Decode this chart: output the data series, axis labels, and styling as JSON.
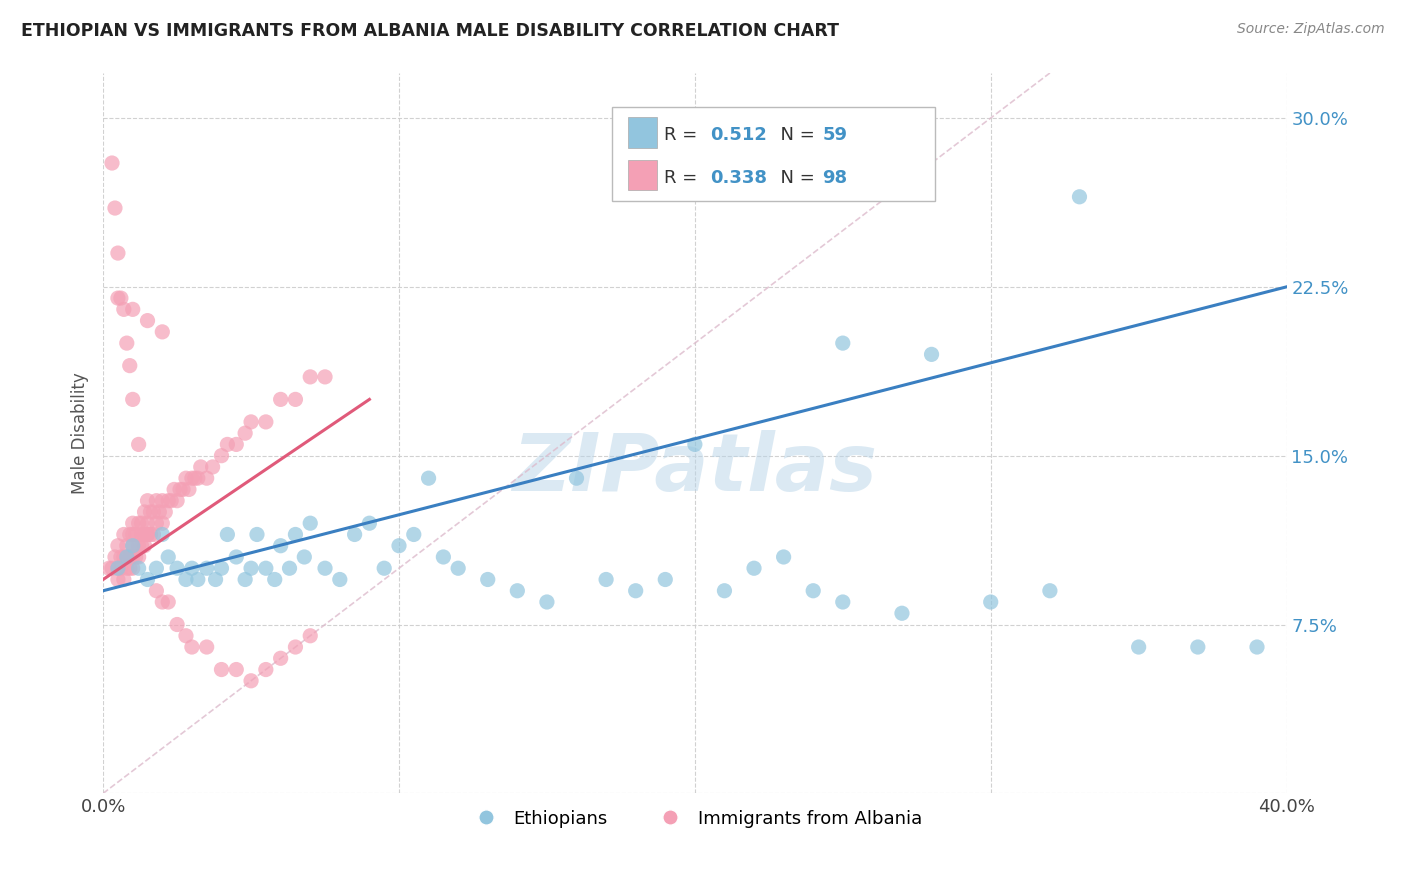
{
  "title": "ETHIOPIAN VS IMMIGRANTS FROM ALBANIA MALE DISABILITY CORRELATION CHART",
  "source": "Source: ZipAtlas.com",
  "ylabel": "Male Disability",
  "yticks": [
    0.0,
    0.075,
    0.15,
    0.225,
    0.3
  ],
  "ytick_labels": [
    "",
    "7.5%",
    "15.0%",
    "22.5%",
    "30.0%"
  ],
  "xlim": [
    0.0,
    0.4
  ],
  "ylim": [
    0.0,
    0.32
  ],
  "watermark": "ZIPatlas",
  "color_blue": "#92c5de",
  "color_pink": "#f4a0b5",
  "color_blue_text": "#4292c6",
  "blue_scatter_x": [
    0.005,
    0.008,
    0.01,
    0.012,
    0.015,
    0.018,
    0.02,
    0.022,
    0.025,
    0.028,
    0.03,
    0.032,
    0.035,
    0.038,
    0.04,
    0.042,
    0.045,
    0.048,
    0.05,
    0.052,
    0.055,
    0.058,
    0.06,
    0.063,
    0.065,
    0.068,
    0.07,
    0.075,
    0.08,
    0.085,
    0.09,
    0.095,
    0.1,
    0.105,
    0.11,
    0.115,
    0.12,
    0.13,
    0.14,
    0.15,
    0.16,
    0.17,
    0.18,
    0.19,
    0.2,
    0.21,
    0.22,
    0.23,
    0.24,
    0.25,
    0.27,
    0.3,
    0.32,
    0.35,
    0.37,
    0.39,
    0.25,
    0.28,
    0.33
  ],
  "blue_scatter_y": [
    0.1,
    0.105,
    0.11,
    0.1,
    0.095,
    0.1,
    0.115,
    0.105,
    0.1,
    0.095,
    0.1,
    0.095,
    0.1,
    0.095,
    0.1,
    0.115,
    0.105,
    0.095,
    0.1,
    0.115,
    0.1,
    0.095,
    0.11,
    0.1,
    0.115,
    0.105,
    0.12,
    0.1,
    0.095,
    0.115,
    0.12,
    0.1,
    0.11,
    0.115,
    0.14,
    0.105,
    0.1,
    0.095,
    0.09,
    0.085,
    0.14,
    0.095,
    0.09,
    0.095,
    0.155,
    0.09,
    0.1,
    0.105,
    0.09,
    0.085,
    0.08,
    0.085,
    0.09,
    0.065,
    0.065,
    0.065,
    0.2,
    0.195,
    0.265
  ],
  "pink_scatter_x": [
    0.002,
    0.003,
    0.004,
    0.005,
    0.005,
    0.005,
    0.006,
    0.006,
    0.007,
    0.007,
    0.007,
    0.008,
    0.008,
    0.008,
    0.009,
    0.009,
    0.009,
    0.01,
    0.01,
    0.01,
    0.01,
    0.01,
    0.011,
    0.011,
    0.012,
    0.012,
    0.012,
    0.013,
    0.013,
    0.013,
    0.014,
    0.014,
    0.014,
    0.015,
    0.015,
    0.015,
    0.016,
    0.016,
    0.017,
    0.017,
    0.018,
    0.018,
    0.019,
    0.02,
    0.02,
    0.021,
    0.022,
    0.023,
    0.024,
    0.025,
    0.026,
    0.027,
    0.028,
    0.029,
    0.03,
    0.031,
    0.032,
    0.033,
    0.035,
    0.037,
    0.04,
    0.042,
    0.045,
    0.048,
    0.05,
    0.055,
    0.06,
    0.065,
    0.07,
    0.075,
    0.003,
    0.004,
    0.005,
    0.006,
    0.007,
    0.008,
    0.009,
    0.01,
    0.012,
    0.015,
    0.018,
    0.02,
    0.022,
    0.025,
    0.028,
    0.03,
    0.035,
    0.04,
    0.045,
    0.05,
    0.055,
    0.06,
    0.065,
    0.07,
    0.005,
    0.01,
    0.015,
    0.02
  ],
  "pink_scatter_y": [
    0.1,
    0.1,
    0.105,
    0.095,
    0.1,
    0.11,
    0.1,
    0.105,
    0.095,
    0.105,
    0.115,
    0.1,
    0.105,
    0.11,
    0.1,
    0.105,
    0.115,
    0.1,
    0.105,
    0.11,
    0.115,
    0.12,
    0.105,
    0.115,
    0.105,
    0.11,
    0.12,
    0.11,
    0.115,
    0.12,
    0.11,
    0.115,
    0.125,
    0.115,
    0.12,
    0.13,
    0.115,
    0.125,
    0.115,
    0.125,
    0.12,
    0.13,
    0.125,
    0.12,
    0.13,
    0.125,
    0.13,
    0.13,
    0.135,
    0.13,
    0.135,
    0.135,
    0.14,
    0.135,
    0.14,
    0.14,
    0.14,
    0.145,
    0.14,
    0.145,
    0.15,
    0.155,
    0.155,
    0.16,
    0.165,
    0.165,
    0.175,
    0.175,
    0.185,
    0.185,
    0.28,
    0.26,
    0.24,
    0.22,
    0.215,
    0.2,
    0.19,
    0.175,
    0.155,
    0.115,
    0.09,
    0.085,
    0.085,
    0.075,
    0.07,
    0.065,
    0.065,
    0.055,
    0.055,
    0.05,
    0.055,
    0.06,
    0.065,
    0.07,
    0.22,
    0.215,
    0.21,
    0.205
  ]
}
